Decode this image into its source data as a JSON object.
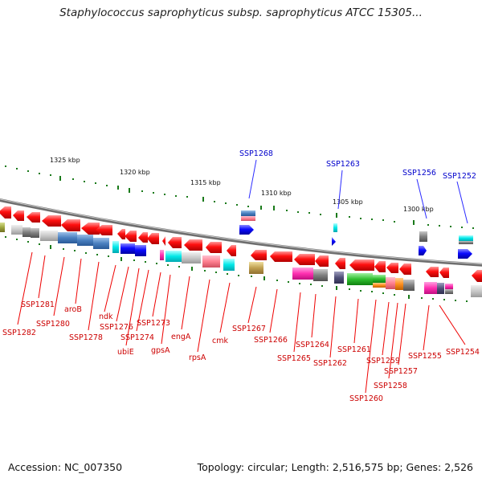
{
  "header": {
    "title": "Staphylococcus saprophyticus subsp. saprophyticus ATCC 15305..."
  },
  "footer": {
    "accession": "Accession: NC_007350",
    "summary": "Topology: circular; Length: 2,516,575 bp; Genes: 2,526"
  },
  "scale": {
    "ticks": [
      "1325 kbp",
      "1320 kbp",
      "1315 kbp",
      "1310 kbp",
      "1305 kbp",
      "1300 kbp"
    ]
  },
  "labels": {
    "outer_blue": [
      "SSP1268",
      "SSP1263",
      "SSP1256",
      "SSP1252"
    ],
    "red": [
      "SSP1282",
      "SSP1281",
      "SSP1280",
      "aroB",
      "SSP1278",
      "ndk",
      "SSP1276",
      "ubiE",
      "SSP1274",
      "SSP1273",
      "gpsA",
      "engA",
      "rpsA",
      "cmk",
      "SSP1267",
      "SSP1266",
      "SSP1265",
      "SSP1264",
      "SSP1262",
      "SSP1261",
      "SSP1260",
      "SSP1259",
      "SSP1258",
      "SSP1257",
      "SSP1255",
      "SSP1254"
    ]
  },
  "colors": {
    "forward_cds": "#0000ff",
    "reverse_cds": "#ff0000",
    "backbone": "#808080",
    "tick": "#1a7a1a",
    "label_blue": "#0000cc",
    "label_red": "#cc0000",
    "cog": [
      "#5080c0",
      "#00e0e0",
      "#ff70a0",
      "#ff40b0",
      "#909090",
      "#c0c0c0",
      "#40c040",
      "#ff9020",
      "#c0a050",
      "#505070"
    ]
  }
}
